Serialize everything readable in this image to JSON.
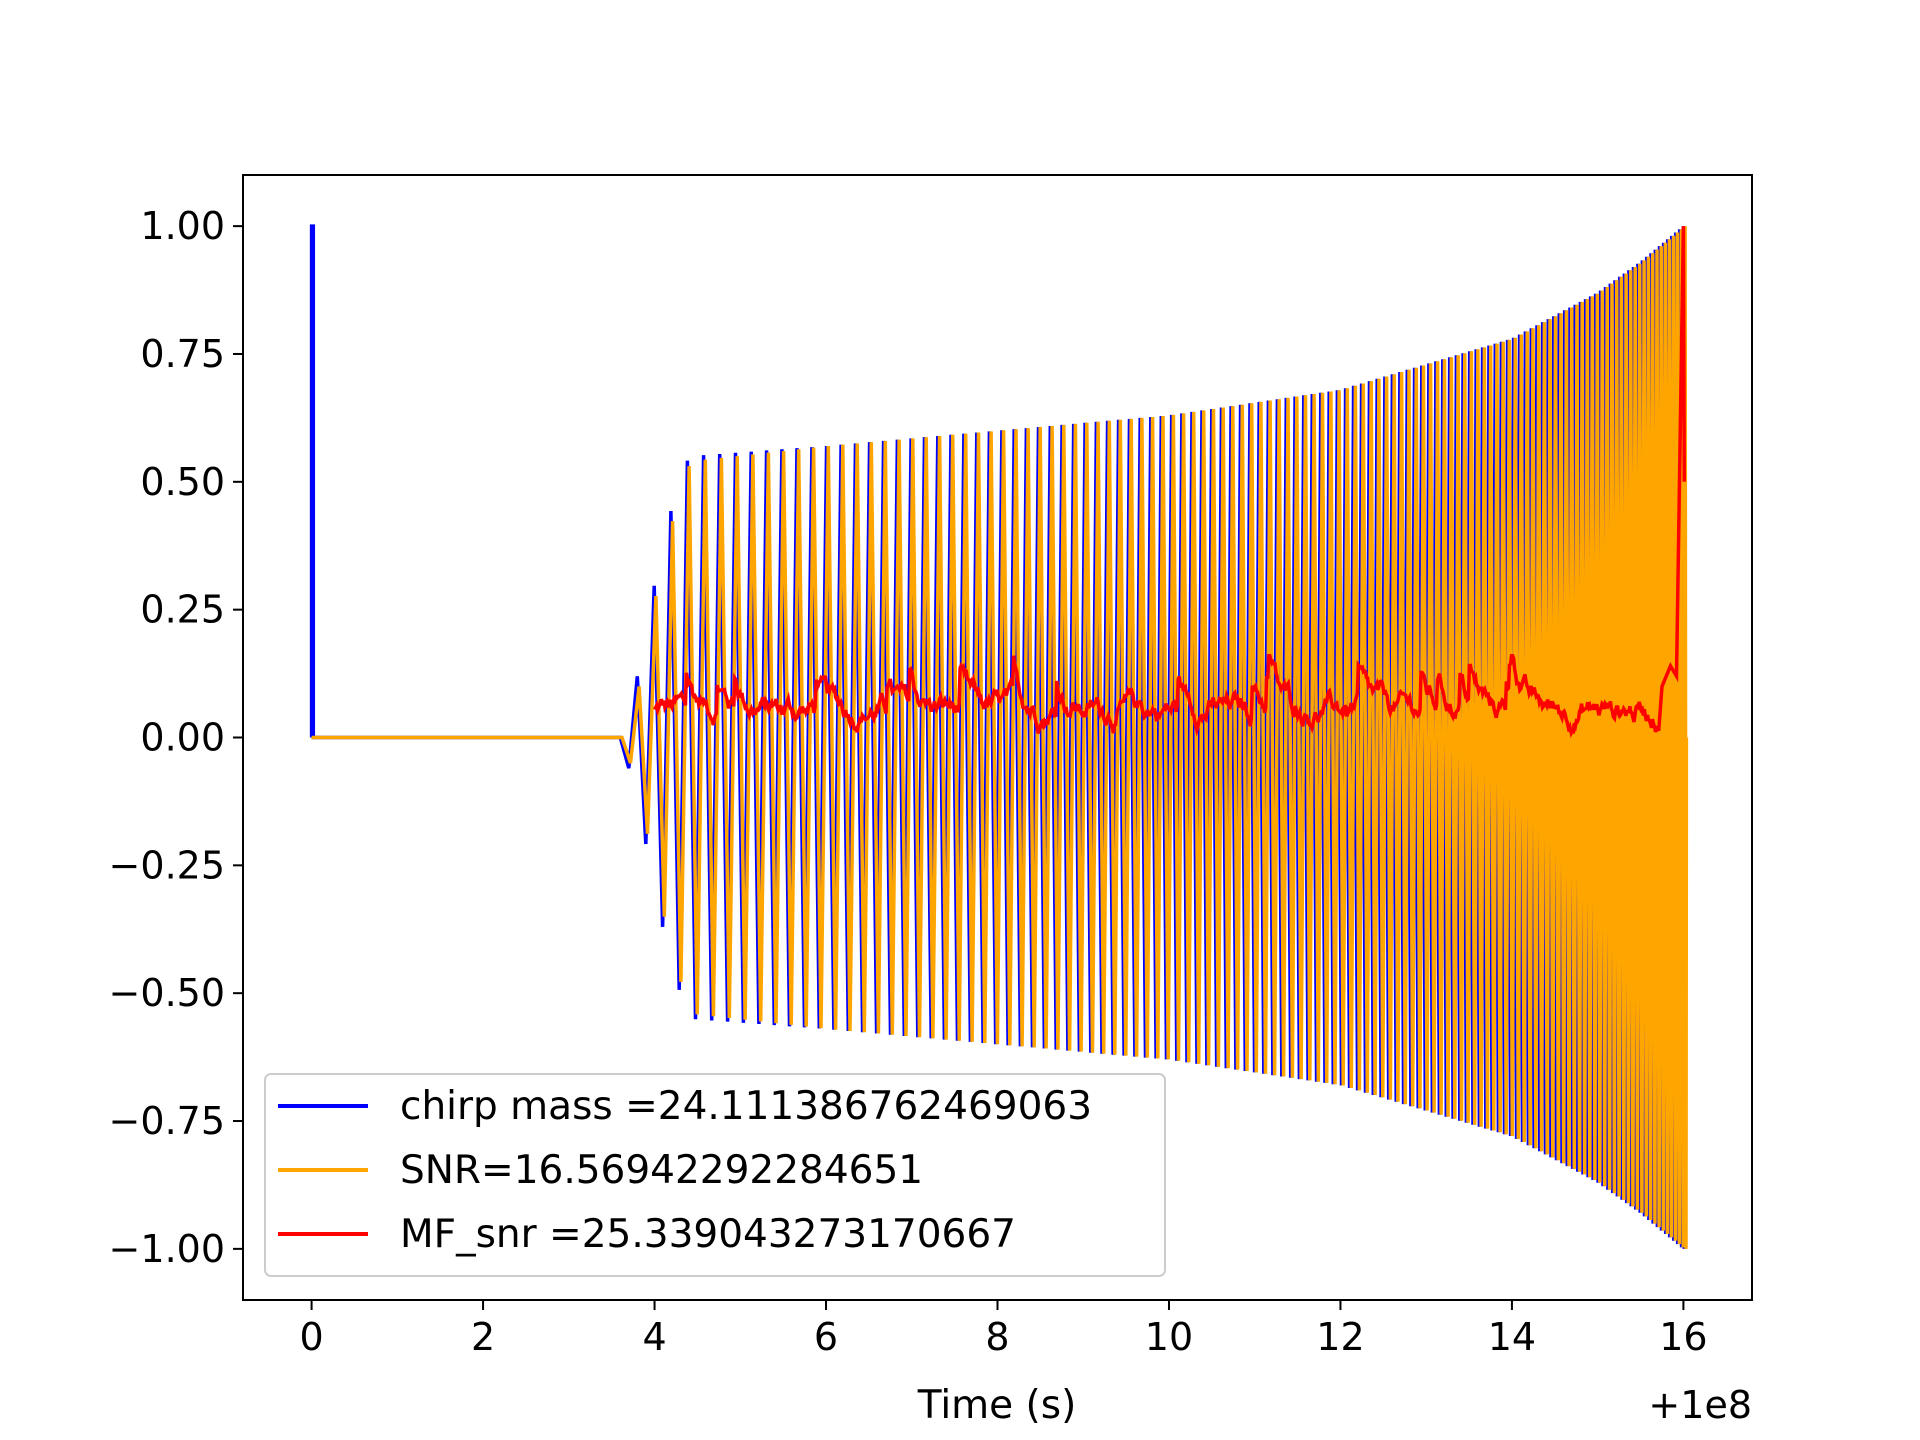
{
  "chart_data": {
    "type": "line",
    "title": "",
    "xlabel": "Time (s)",
    "ylabel": "",
    "x_offset_label": "+1e8",
    "xlim": [
      -0.8,
      16.8
    ],
    "ylim": [
      -1.1,
      1.1
    ],
    "xticks": [
      0,
      2,
      4,
      6,
      8,
      10,
      12,
      14,
      16
    ],
    "xtick_labels": [
      "0",
      "2",
      "4",
      "6",
      "8",
      "10",
      "12",
      "14",
      "16"
    ],
    "yticks": [
      1.0,
      0.75,
      0.5,
      0.25,
      0.0,
      -0.25,
      -0.5,
      -0.75,
      -1.0
    ],
    "ytick_labels": [
      "1.00",
      "0.75",
      "0.50",
      "0.25",
      "0.00",
      "−0.25",
      "−0.50",
      "−0.75",
      "−1.00"
    ],
    "grid": false,
    "legend_position": "lower-left",
    "series": [
      {
        "name": "chirp mass =24.111386762469063",
        "color": "#0000ff",
        "description_points": [
          [
            0,
            0
          ],
          [
            0,
            1.0
          ],
          [
            0.02,
            1.0
          ],
          [
            0.02,
            0
          ],
          [
            3.6,
            0
          ]
        ],
        "envelope": [
          [
            3.6,
            0.0
          ],
          [
            3.8,
            0.12
          ],
          [
            4.0,
            0.3
          ],
          [
            4.2,
            0.45
          ],
          [
            4.4,
            0.55
          ],
          [
            6,
            0.57
          ],
          [
            8,
            0.6
          ],
          [
            10,
            0.63
          ],
          [
            12,
            0.68
          ],
          [
            14,
            0.78
          ],
          [
            15,
            0.87
          ],
          [
            15.5,
            0.93
          ],
          [
            16,
            1.0
          ]
        ]
      },
      {
        "name": "SNR=16.56942292284651",
        "color": "#ffa500",
        "envelope": [
          [
            3.6,
            0.0
          ],
          [
            3.8,
            0.1
          ],
          [
            4.0,
            0.28
          ],
          [
            4.2,
            0.43
          ],
          [
            4.4,
            0.54
          ],
          [
            6,
            0.57
          ],
          [
            8,
            0.6
          ],
          [
            10,
            0.63
          ],
          [
            12,
            0.68
          ],
          [
            14,
            0.78
          ],
          [
            15,
            0.87
          ],
          [
            15.5,
            0.93
          ],
          [
            16,
            1.0
          ]
        ]
      },
      {
        "name": "MF_snr =25.339043273170667",
        "color": "#ff0000",
        "x_range": [
          4.0,
          16.0
        ],
        "baseline_range": [
          0.0,
          0.16
        ],
        "peak": [
          16.0,
          1.0
        ]
      }
    ]
  }
}
